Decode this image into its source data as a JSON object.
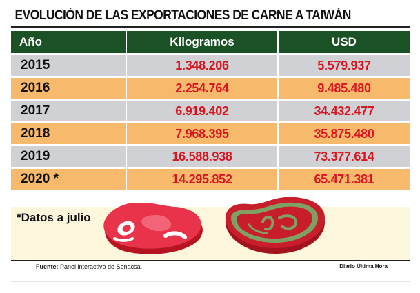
{
  "title": "EVOLUCIÓN DE LAS EXPORTACIONES DE CARNE A TAIWÁN",
  "headers": [
    "Año",
    "Kilogramos",
    "USD"
  ],
  "rows": [
    {
      "year": "2015",
      "kg": "1.348.206",
      "usd": "5.579.937",
      "style": "gray"
    },
    {
      "year": "2016",
      "kg": "2.254.764",
      "usd": "9.485.480",
      "style": "orange"
    },
    {
      "year": "2017",
      "kg": "6.919.402",
      "usd": "34.432.477",
      "style": "gray"
    },
    {
      "year": "2018",
      "kg": "7.968.395",
      "usd": "35.875.480",
      "style": "orange"
    },
    {
      "year": "2019",
      "kg": "16.588.938",
      "usd": "73.377.614",
      "style": "gray"
    },
    {
      "year": "2020 *",
      "kg": "14.295.852",
      "usd": "65.471.381",
      "style": "orange"
    }
  ],
  "note": "*Datos a julio",
  "source_label": "Fuente:",
  "source_text": "Panel interactivo de Senacsa.",
  "credit": "Diario Última Hora",
  "colors": {
    "header_bg": "#1a5226",
    "row_gray": "#cfd1d4",
    "row_orange": "#f7b96b",
    "value_red": "#d81521",
    "bottom_bg": "#fcf6dc"
  },
  "chart_data": {
    "type": "table",
    "title": "EVOLUCIÓN DE LAS EXPORTACIONES DE CARNE A TAIWÁN",
    "columns": [
      "Año",
      "Kilogramos",
      "USD"
    ],
    "rows": [
      [
        "2015",
        1348206,
        5579937
      ],
      [
        "2016",
        2254764,
        9485480
      ],
      [
        "2017",
        6919402,
        34432477
      ],
      [
        "2018",
        7968395,
        35875480
      ],
      [
        "2019",
        16588938,
        73377614
      ],
      [
        "2020 *",
        14295852,
        65471381
      ]
    ]
  }
}
